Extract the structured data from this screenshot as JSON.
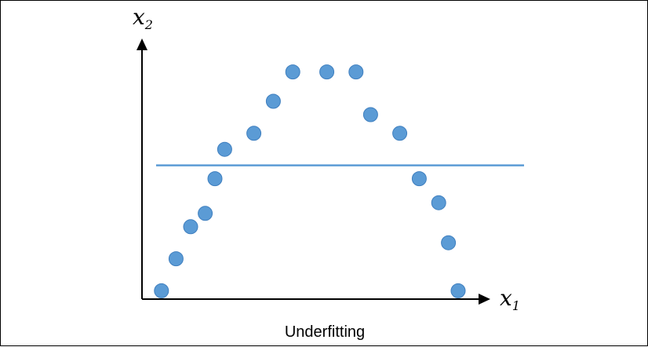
{
  "caption": "Underfitting",
  "axes": {
    "x_label": "x",
    "x_sub": "1",
    "y_label": "x",
    "y_sub": "2"
  },
  "colors": {
    "point": "#5b9bd5",
    "point_stroke": "#3f7fbf",
    "line": "#5b9bd5",
    "axis": "#000000"
  },
  "chart_data": {
    "type": "scatter",
    "points": [
      [
        0.04,
        0.09
      ],
      [
        0.07,
        0.21
      ],
      [
        0.1,
        0.33
      ],
      [
        0.13,
        0.38
      ],
      [
        0.15,
        0.51
      ],
      [
        0.17,
        0.62
      ],
      [
        0.23,
        0.68
      ],
      [
        0.27,
        0.8
      ],
      [
        0.31,
        0.91
      ],
      [
        0.38,
        0.91
      ],
      [
        0.44,
        0.91
      ],
      [
        0.47,
        0.75
      ],
      [
        0.53,
        0.68
      ],
      [
        0.57,
        0.51
      ],
      [
        0.61,
        0.42
      ],
      [
        0.63,
        0.27
      ],
      [
        0.65,
        0.09
      ]
    ],
    "fit_line": {
      "type": "horizontal",
      "y": 0.56
    },
    "xlim": [
      0,
      1
    ],
    "ylim": [
      0,
      1
    ]
  }
}
